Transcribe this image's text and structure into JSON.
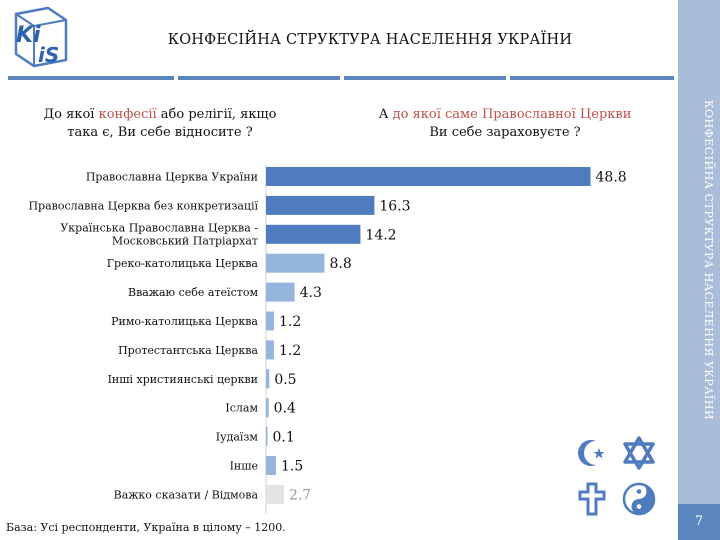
{
  "header": {
    "logo_text_top": "Ki",
    "logo_text_bottom": "iS",
    "title": "КОНФЕСІЙНА СТРУКТУРА НАСЕЛЕННЯ УКРАЇНИ"
  },
  "sidebar": {
    "vertical_title": "КОНФЕСІЙНА СТРУКТУРА НАСЕЛЕННЯ УКРАЇНИ",
    "page_number": "7"
  },
  "questions": {
    "left": {
      "part1": "До якої ",
      "highlight": "конфесії",
      "part2": " або релігії, якщо",
      "line2": "така є, Ви себе відносите ?"
    },
    "right": {
      "part1": "А ",
      "highlight": "до якої саме Православної Церкви",
      "line2": "Ви себе зараховуєте ?"
    }
  },
  "footnote": "База: Усі респонденти, Україна в цілому – 1200.",
  "colors": {
    "dark_blue": "#4f7cbf",
    "light_blue": "#96b5dc",
    "gray": "#e3e3e3",
    "highlight_red": "#c0504d"
  },
  "icons": [
    "crescent-star-icon",
    "star-of-david-icon",
    "cross-icon",
    "yin-yang-icon"
  ],
  "chart_data": {
    "type": "bar",
    "orientation": "horizontal",
    "title": "КОНФЕСІЙНА СТРУКТУРА НАСЕЛЕННЯ УКРАЇНИ",
    "unit": "%",
    "xlim": [
      0,
      50
    ],
    "categories": [
      [
        "Православна Церква України"
      ],
      [
        "Православна Церква без конкретизації"
      ],
      [
        "Українська Православна Церква -",
        "Московський Патріархат"
      ],
      [
        "Греко-католицька Церква"
      ],
      [
        "Вважаю себе атеїстом"
      ],
      [
        "Римо-католицька Церква"
      ],
      [
        "Протестантська Церква"
      ],
      [
        "Інші християнські церкви"
      ],
      [
        "Іслам"
      ],
      [
        "Іудаїзм"
      ],
      [
        "Інше"
      ],
      [
        "Важко сказати / Відмова"
      ]
    ],
    "values": [
      48.8,
      16.3,
      14.2,
      8.8,
      4.3,
      1.2,
      1.2,
      0.5,
      0.4,
      0.1,
      1.5,
      2.7
    ],
    "labels": [
      "48.8",
      "16.3",
      "14.2",
      "8.8",
      "4.3",
      "1.2",
      "1.2",
      "0.5",
      "0.4",
      "0.1",
      "1.5",
      "2.7"
    ],
    "groups": [
      "orthodox",
      "orthodox",
      "orthodox",
      "other",
      "other",
      "other",
      "other",
      "other",
      "other",
      "other",
      "other",
      "refused"
    ]
  }
}
